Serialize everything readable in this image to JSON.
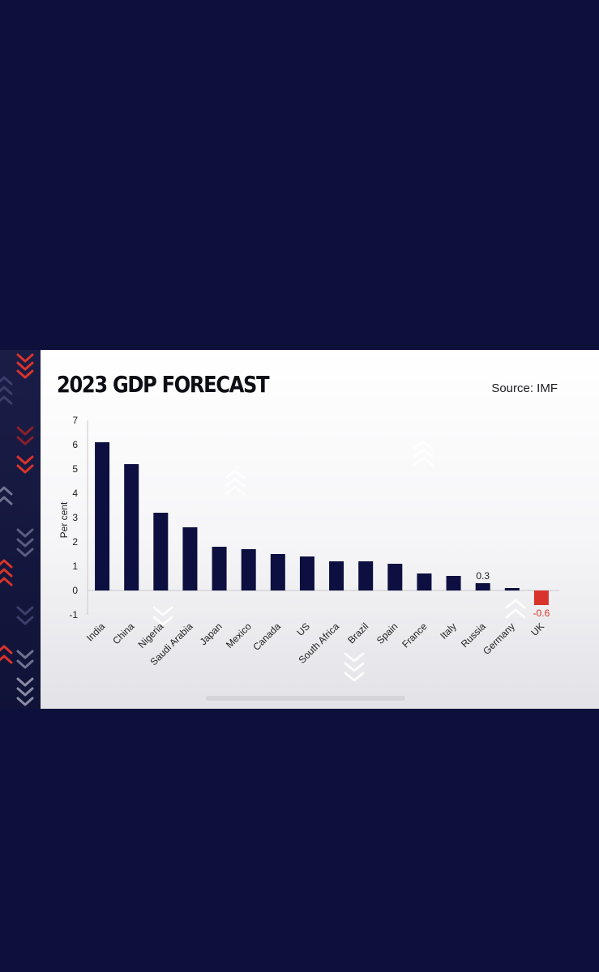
{
  "title": "2023 GDP FORECAST",
  "source": "Source: IMF",
  "colors": {
    "background": "#0c103b",
    "bar": "#0c0f3f",
    "negative_bar": "#d8342b",
    "negative_label": "#d8342b",
    "accent_red": "#d8342b",
    "axis": "#c9c9ce"
  },
  "chart_data": {
    "type": "bar",
    "title": "2023 GDP FORECAST",
    "xlabel": "",
    "ylabel": "Per cent",
    "ylim": [
      -1,
      7
    ],
    "yticks": [
      "-1",
      "0",
      "1",
      "2",
      "3",
      "4",
      "5",
      "6",
      "7"
    ],
    "grid": false,
    "categories": [
      "India",
      "China",
      "Nigeria",
      "Saudi Arabia",
      "Japan",
      "Mexico",
      "Canada",
      "US",
      "South Africa",
      "Brazil",
      "Spain",
      "France",
      "Italy",
      "Russia",
      "Germany",
      "UK"
    ],
    "values": [
      6.1,
      5.2,
      3.2,
      2.6,
      1.8,
      1.7,
      1.5,
      1.4,
      1.2,
      1.2,
      1.1,
      0.7,
      0.6,
      0.3,
      0.1,
      -0.6
    ],
    "data_labels": [
      {
        "category": "Russia",
        "text": "0.3"
      },
      {
        "category": "UK",
        "text": "-0.6"
      }
    ]
  }
}
